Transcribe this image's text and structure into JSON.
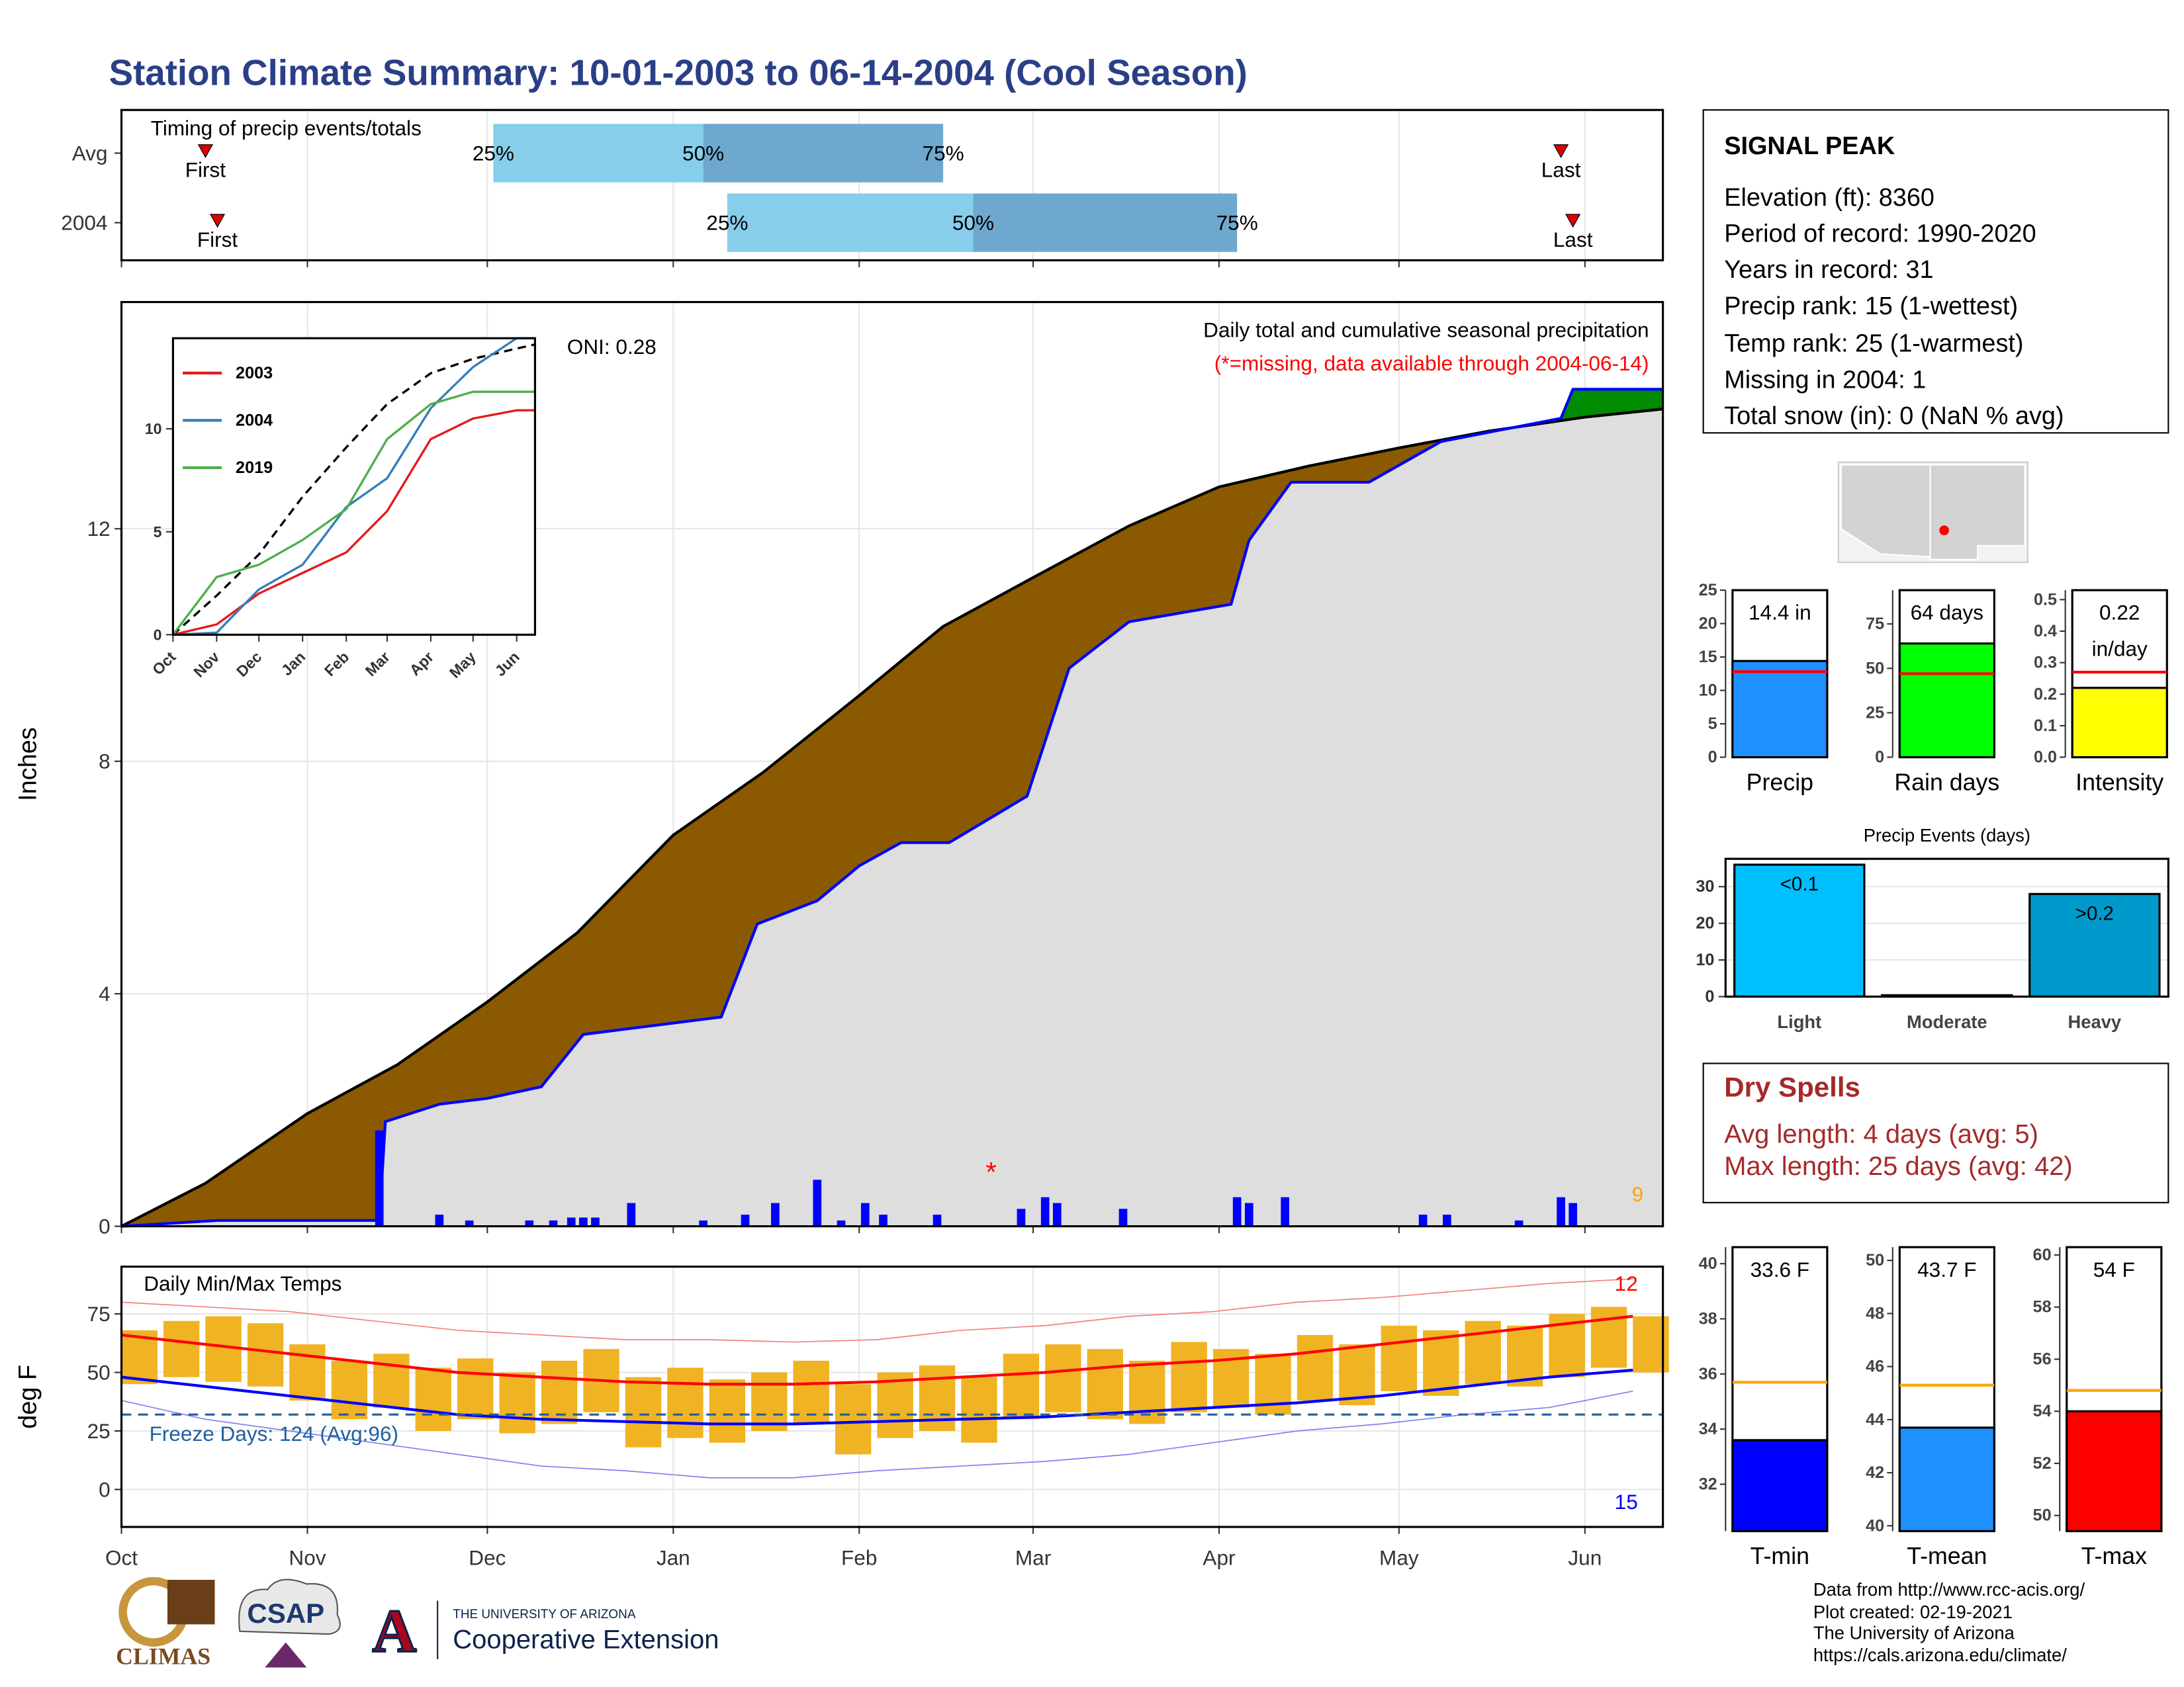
{
  "title": "Station Climate Summary: 10-01-2003 to 06-14-2004 (Cool Season)",
  "station": {
    "name": "SIGNAL PEAK",
    "lines": [
      "Elevation (ft): 8360",
      "Period of record: 1990-2020",
      "Years in record: 31",
      "Precip rank: 15 (1-wettest)",
      "Temp rank: 25 (1-warmest)",
      "Missing in 2004: 1",
      "Total snow (in): 0 (NaN % avg)"
    ]
  },
  "dry_spells": {
    "title": "Dry Spells",
    "lines": [
      "Avg length: 4 days (avg: 5)",
      "Max length: 25 days (avg: 42)"
    ]
  },
  "footer": {
    "lines": [
      "Data from http://www.rcc-acis.org/",
      "Plot created: 02-19-2021",
      "The University of Arizona",
      "https://cals.arizona.edu/climate/"
    ]
  },
  "logos": {
    "climas": "CLIMAS",
    "csap": "CSAP",
    "university": "THE UNIVERSITY OF ARIZONA",
    "extension": "Cooperative Extension"
  },
  "chart_data": [
    {
      "type": "timing",
      "title": "Timing of precip events/totals",
      "xlim": [
        0,
        257
      ],
      "xticks": [
        0,
        31,
        61,
        92,
        123,
        152,
        183,
        213,
        244
      ],
      "percent_labels": [
        "25%",
        "50%",
        "75%"
      ],
      "first_label": "First",
      "last_label": "Last",
      "colors": [
        "#87ceeb",
        "#6fa8cf"
      ],
      "marker_color": "#e00000",
      "rows": [
        {
          "name": "Avg",
          "first": 14,
          "p25": 62,
          "p50": 97,
          "p75": 137,
          "last": 240
        },
        {
          "name": "2004",
          "first": 16,
          "p25": 101,
          "p50": 142,
          "p75": 186,
          "last": 242
        }
      ]
    },
    {
      "type": "cumulative",
      "title": "Daily total and cumulative seasonal precipitation",
      "subtitle": "(*=missing, data available through 2004-06-14)",
      "annotation": "ONI: 0.28",
      "extreme_count": 9,
      "ylabel": "Inches",
      "xlim": [
        0,
        257
      ],
      "xticks": [
        0,
        31,
        61,
        92,
        123,
        152,
        183,
        213,
        244
      ],
      "ylim": [
        0,
        15.9
      ],
      "yticks": [
        0,
        4,
        8,
        12
      ],
      "fill_colors": {
        "below": "#8b5a00",
        "above": "#008b00",
        "base": "#dedede"
      },
      "series": [
        {
          "color": "#000000",
          "x": [
            0,
            14,
            31,
            46,
            61,
            76,
            92,
            107,
            123,
            137,
            152,
            168,
            183,
            198,
            213,
            228,
            244,
            257
          ],
          "values": [
            0,
            0.74,
            1.94,
            2.78,
            3.86,
            5.05,
            6.73,
            7.81,
            9.13,
            10.32,
            11.16,
            12.05,
            12.72,
            13.08,
            13.39,
            13.68,
            13.92,
            14.06
          ]
        },
        {
          "color": "#0000ff",
          "x": [
            0,
            16,
            43,
            44,
            53,
            61,
            70,
            77,
            100,
            106,
            116,
            123,
            130,
            138,
            151,
            158,
            168,
            185,
            188,
            195,
            208,
            220,
            240,
            242,
            257
          ],
          "values": [
            0,
            0.1,
            0.1,
            1.8,
            2.1,
            2.2,
            2.4,
            3.3,
            3.6,
            5.2,
            5.6,
            6.2,
            6.6,
            6.6,
            7.4,
            9.6,
            10.4,
            10.7,
            11.8,
            12.8,
            12.8,
            13.5,
            13.9,
            14.4,
            14.4
          ]
        }
      ],
      "daily": {
        "color": "#0000ff",
        "x": [
          43,
          53,
          58,
          68,
          72,
          75,
          77,
          79,
          85,
          97,
          104,
          109,
          116,
          120,
          124,
          127,
          136,
          150,
          154,
          156,
          167,
          186,
          188,
          194,
          217,
          221,
          233,
          240,
          242
        ],
        "values": [
          1.65,
          0.2,
          0.1,
          0.1,
          0.1,
          0.15,
          0.15,
          0.15,
          0.4,
          0.1,
          0.2,
          0.4,
          0.8,
          0.1,
          0.4,
          0.2,
          0.2,
          0.3,
          0.5,
          0.4,
          0.3,
          0.5,
          0.4,
          0.5,
          0.2,
          0.2,
          0.1,
          0.5,
          0.4
        ]
      },
      "missing_x": [
        145
      ],
      "missing_marker": "*"
    },
    {
      "type": "line",
      "xlim": [
        0,
        257
      ],
      "xticks": [
        {
          "value": 0,
          "label": "Oct"
        },
        {
          "value": 31,
          "label": "Nov"
        },
        {
          "value": 61,
          "label": "Dec"
        },
        {
          "value": 92,
          "label": "Jan"
        },
        {
          "value": 123,
          "label": "Feb"
        },
        {
          "value": 152,
          "label": "Mar"
        },
        {
          "value": 183,
          "label": "Apr"
        },
        {
          "value": 213,
          "label": "May"
        },
        {
          "value": 244,
          "label": "Jun"
        }
      ],
      "ylim": [
        0,
        14.4
      ],
      "yticks": [
        0,
        5,
        10
      ],
      "x": [
        0,
        31,
        61,
        92,
        123,
        152,
        183,
        213,
        244,
        257
      ],
      "series": [
        {
          "name": "2003",
          "color": "#e41a1c",
          "values": [
            0,
            0.5,
            2,
            3,
            4,
            6,
            9.5,
            10.5,
            10.9,
            10.9
          ]
        },
        {
          "name": "2004",
          "color": "#377eb8",
          "values": [
            0,
            0.1,
            2.2,
            3.4,
            6.2,
            7.6,
            11,
            13,
            14.4,
            14.4
          ]
        },
        {
          "name": "2019",
          "color": "#4daf4a",
          "values": [
            0,
            2.8,
            3.4,
            4.6,
            6.1,
            9.5,
            11.2,
            11.8,
            11.8,
            11.8
          ]
        }
      ],
      "reference": {
        "color": "#000000",
        "values": [
          0,
          1.9,
          3.9,
          6.7,
          9.1,
          11.2,
          12.7,
          13.4,
          13.9,
          14.1
        ]
      }
    },
    {
      "type": "temperature",
      "title": "Daily Min/Max Temps",
      "ylabel": "deg F",
      "annotation": "Freeze Days: 124 (Avg:96)",
      "record_high_count": 12,
      "record_low_count": 15,
      "freeze_line": 32,
      "freeze_color": "#1f5f9f",
      "xlim": [
        0,
        257
      ],
      "xticks": [
        {
          "value": 0,
          "label": "Oct"
        },
        {
          "value": 31,
          "label": "Nov"
        },
        {
          "value": 61,
          "label": "Dec"
        },
        {
          "value": 92,
          "label": "Jan"
        },
        {
          "value": 123,
          "label": "Feb"
        },
        {
          "value": 152,
          "label": "Mar"
        },
        {
          "value": 183,
          "label": "Apr"
        },
        {
          "value": 213,
          "label": "May"
        },
        {
          "value": 244,
          "label": "Jun"
        }
      ],
      "ylim": [
        -16,
        95.2
      ],
      "yticks": [
        0,
        25,
        50,
        75
      ],
      "daily": {
        "color": "#f0b323",
        "x": [
          0,
          7,
          14,
          21,
          28,
          35,
          42,
          49,
          56,
          63,
          70,
          77,
          84,
          91,
          98,
          105,
          112,
          119,
          126,
          133,
          140,
          147,
          154,
          161,
          168,
          175,
          182,
          189,
          196,
          203,
          210,
          217,
          224,
          231,
          238,
          245,
          252
        ],
        "max": [
          68,
          72,
          74,
          71,
          62,
          55,
          58,
          52,
          56,
          50,
          55,
          60,
          48,
          52,
          47,
          50,
          55,
          45,
          50,
          53,
          48,
          58,
          62,
          60,
          55,
          63,
          60,
          58,
          66,
          62,
          70,
          68,
          72,
          70,
          75,
          78,
          74
        ],
        "min": [
          45,
          48,
          46,
          44,
          38,
          30,
          35,
          25,
          30,
          24,
          28,
          33,
          18,
          22,
          20,
          25,
          28,
          15,
          22,
          25,
          20,
          30,
          33,
          30,
          28,
          33,
          35,
          32,
          38,
          36,
          42,
          40,
          45,
          44,
          48,
          52,
          50
        ]
      },
      "normals": {
        "x": [
          0,
          14,
          28,
          42,
          56,
          70,
          84,
          98,
          112,
          126,
          140,
          154,
          168,
          182,
          196,
          210,
          224,
          238,
          252
        ],
        "series": [
          {
            "color": "#ff0000",
            "width": 2,
            "values": [
              66,
              62,
              58,
              54,
              50,
              48,
              46,
              45,
              45,
              46,
              48,
              50,
              53,
              55,
              58,
              62,
              66,
              70,
              74
            ]
          },
          {
            "color": "#0000ff",
            "width": 2,
            "values": [
              48,
              44,
              40,
              36,
              32,
              30,
              29,
              28,
              28,
              29,
              30,
              31,
              33,
              35,
              37,
              40,
              44,
              48,
              51
            ]
          },
          {
            "color": "#f08080",
            "width": 0.8,
            "values": [
              80,
              78,
              76,
              72,
              68,
              66,
              64,
              64,
              63,
              64,
              68,
              70,
              74,
              76,
              80,
              82,
              85,
              88,
              90
            ]
          },
          {
            "color": "#8080f0",
            "width": 0.8,
            "values": [
              38,
              30,
              25,
              20,
              15,
              10,
              8,
              5,
              5,
              8,
              10,
              12,
              15,
              20,
              25,
              28,
              32,
              35,
              42
            ]
          }
        ]
      }
    },
    {
      "type": "bar",
      "title": "Precip Events (days)",
      "categories": [
        "Light",
        "Moderate",
        "Heavy"
      ],
      "values": [
        36,
        0,
        28
      ],
      "bar_labels": [
        "<0.1",
        null,
        ">0.2"
      ],
      "colors": [
        "#00bfff",
        "#00bfff",
        "#0099cc"
      ],
      "ylim": [
        0,
        37.6
      ],
      "yticks": [
        0,
        10,
        20,
        30
      ],
      "grid": true
    },
    {
      "type": "panels",
      "average_color": "#ff0000",
      "panels": [
        {
          "label": "Precip",
          "value": 14.4,
          "value_label": "14.4 in",
          "average": 12.8,
          "color": "#1e90ff",
          "ylim": [
            0,
            25
          ],
          "yticks": [
            0,
            5,
            10,
            15,
            20,
            25
          ]
        },
        {
          "label": "Rain days",
          "value": 64,
          "value_label": "64 days",
          "average": 47,
          "color": "#00ff00",
          "ylim": [
            0,
            94
          ],
          "yticks": [
            0,
            25,
            50,
            75
          ]
        },
        {
          "label": "Intensity",
          "value": 0.22,
          "value_label": "0.22",
          "unit_label": "in/day",
          "average": 0.27,
          "color": "#ffff00",
          "ylim": [
            0,
            0.53
          ],
          "yticks": [
            {
              "value": 0,
              "label": "0.0"
            },
            0.1,
            0.2,
            0.3,
            0.4,
            0.5
          ]
        }
      ]
    },
    {
      "type": "panels",
      "average_color": "#ffa500",
      "panels": [
        {
          "label": "T-min",
          "value": 33.6,
          "value_label": "33.6 F",
          "average": 35.7,
          "color": "#0000ff",
          "ylim": [
            30.3,
            40.6
          ],
          "yticks": [
            32,
            34,
            36,
            38,
            40
          ]
        },
        {
          "label": "T-mean",
          "value": 43.7,
          "value_label": "43.7 F",
          "average": 45.3,
          "color": "#1e90ff",
          "ylim": [
            39.8,
            50.5
          ],
          "yticks": [
            40,
            42,
            44,
            46,
            48,
            50
          ]
        },
        {
          "label": "T-max",
          "value": 54,
          "value_label": "54 F",
          "average": 54.8,
          "color": "#ff0000",
          "ylim": [
            49.4,
            60.3
          ],
          "yticks": [
            50,
            52,
            54,
            56,
            58,
            60
          ]
        }
      ]
    }
  ]
}
